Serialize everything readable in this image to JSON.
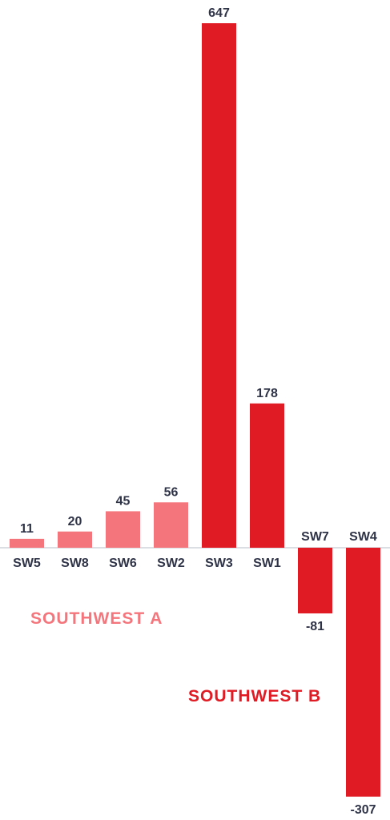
{
  "colors": {
    "group_a": "#f4767c",
    "group_b": "#e01b24",
    "baseline": "#cfd3da",
    "text": "#2f3347"
  },
  "chart_data": {
    "type": "bar",
    "categories": [
      "SW5",
      "SW8",
      "SW6",
      "SW2",
      "SW3",
      "SW1",
      "SW7",
      "SW4"
    ],
    "values": [
      11,
      20,
      45,
      56,
      647,
      178,
      -81,
      -307
    ],
    "groups": [
      "A",
      "A",
      "A",
      "A",
      "B",
      "B",
      "B",
      "B"
    ],
    "group_labels": {
      "A": "SOUTHWEST A",
      "B": "SOUTHWEST B"
    },
    "ylim": [
      -307,
      647
    ],
    "grid": false,
    "legend": "none",
    "data_labels": true
  }
}
